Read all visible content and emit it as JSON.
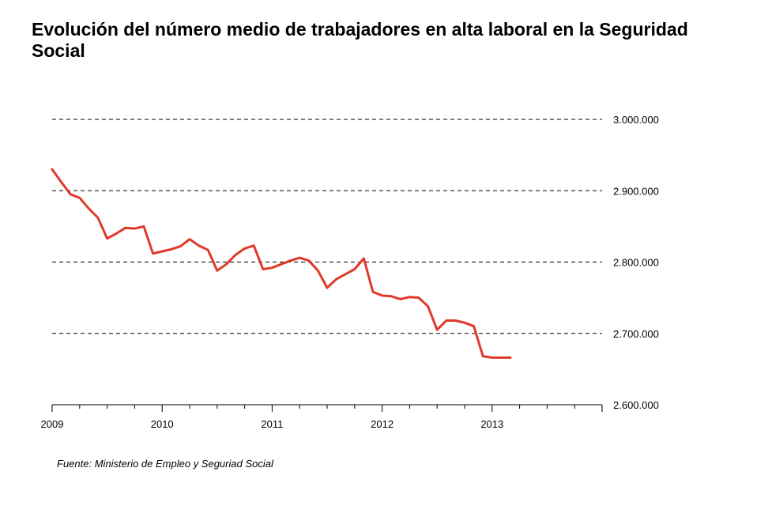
{
  "title": "Evolución del número medio de trabajadores en alta laboral en la Seguridad Social",
  "source": "Fuente: Ministerio de Empleo y Seguriad Social",
  "colors": {
    "line": "#e0392b",
    "grid": "#000000",
    "axis": "#000000"
  },
  "chart_data": {
    "type": "line",
    "title": "Evolución del número medio de trabajadores en alta laboral en la Seguridad Social",
    "xlabel": "",
    "ylabel": "",
    "x_ticks": [
      "2009",
      "2010",
      "2011",
      "2012",
      "2013"
    ],
    "ylim": [
      2600000,
      3000000
    ],
    "y_ticks": [
      2600000,
      2700000,
      2800000,
      2900000,
      3000000
    ],
    "y_tick_labels": [
      "2.600.000",
      "2.700.000",
      "2.800.000",
      "2.900.000",
      "3.000.000"
    ],
    "y_axis_position": "right",
    "grid": "horizontal dashed",
    "series": [
      {
        "x": [
          "2009-01",
          "2009-02",
          "2009-03",
          "2009-04",
          "2009-05",
          "2009-06",
          "2009-07",
          "2009-08",
          "2009-09",
          "2009-10",
          "2009-11",
          "2009-12",
          "2010-01",
          "2010-02",
          "2010-03",
          "2010-04",
          "2010-05",
          "2010-06",
          "2010-07",
          "2010-08",
          "2010-09",
          "2010-10",
          "2010-11",
          "2010-12",
          "2011-01",
          "2011-02",
          "2011-03",
          "2011-04",
          "2011-05",
          "2011-06",
          "2011-07",
          "2011-08",
          "2011-09",
          "2011-10",
          "2011-11",
          "2011-12",
          "2012-01",
          "2012-02",
          "2012-03",
          "2012-04",
          "2012-05",
          "2012-06",
          "2012-07",
          "2012-08",
          "2012-09",
          "2012-10",
          "2012-11",
          "2012-12",
          "2013-01",
          "2013-02",
          "2013-03"
        ],
        "values": [
          2930000,
          2912000,
          2895000,
          2890000,
          2875000,
          2862000,
          2833000,
          2840000,
          2848000,
          2847000,
          2850000,
          2812000,
          2815000,
          2818000,
          2822000,
          2832000,
          2823000,
          2817000,
          2788000,
          2797000,
          2810000,
          2819000,
          2823000,
          2790000,
          2792000,
          2797000,
          2802000,
          2806000,
          2802000,
          2788000,
          2764000,
          2776000,
          2783000,
          2790000,
          2805000,
          2758000,
          2753000,
          2752000,
          2748000,
          2751000,
          2750000,
          2738000,
          2705000,
          2718000,
          2718000,
          2715000,
          2710000,
          2668000,
          2666000,
          2666000,
          2666000
        ]
      }
    ]
  }
}
